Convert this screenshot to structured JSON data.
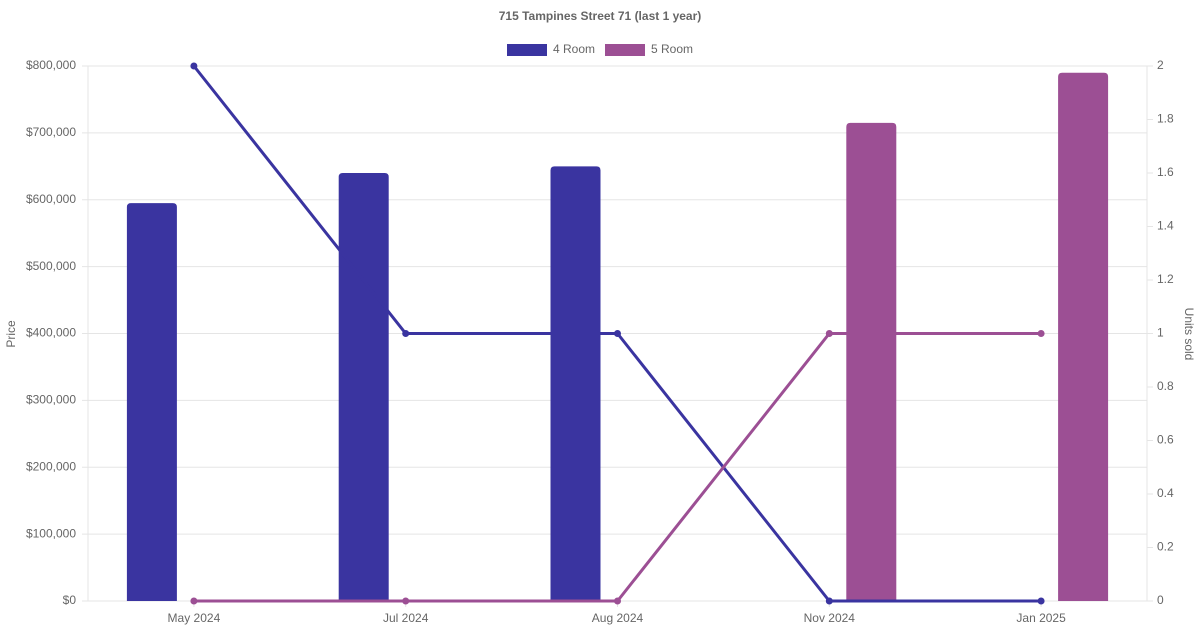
{
  "chart_data": {
    "type": "bar-line",
    "title": "715 Tampines Street 71 (last 1 year)",
    "y_label": "Price",
    "y2_label": "Units sold",
    "categories": [
      "May 2024",
      "Jul 2024",
      "Aug 2024",
      "Nov 2024",
      "Jan 2025"
    ],
    "series": [
      {
        "name": "4 Room",
        "color": "#3a34a0",
        "values": [
          595000,
          640000,
          650000,
          null,
          null
        ],
        "units": [
          2,
          1,
          1,
          0,
          0
        ]
      },
      {
        "name": "5 Room",
        "color": "#9c4f94",
        "values": [
          null,
          null,
          null,
          715000,
          790000
        ],
        "units": [
          0,
          0,
          0,
          1,
          1
        ]
      }
    ],
    "ylim": [
      0,
      800000
    ],
    "yticks": [
      {
        "value": 0,
        "label": "$0"
      },
      {
        "value": 100000,
        "label": "$100,000"
      },
      {
        "value": 200000,
        "label": "$200,000"
      },
      {
        "value": 300000,
        "label": "$300,000"
      },
      {
        "value": 400000,
        "label": "$400,000"
      },
      {
        "value": 500000,
        "label": "$500,000"
      },
      {
        "value": 600000,
        "label": "$600,000"
      },
      {
        "value": 700000,
        "label": "$700,000"
      },
      {
        "value": 800000,
        "label": "$800,000"
      }
    ],
    "y2lim": [
      0,
      2
    ],
    "y2ticks": [
      0,
      0.2,
      0.4,
      0.6,
      0.8,
      1,
      1.2,
      1.4,
      1.6,
      1.8,
      2
    ],
    "grid": true,
    "legend": "top"
  }
}
